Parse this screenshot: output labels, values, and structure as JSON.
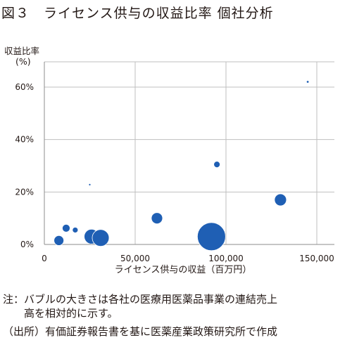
{
  "title": "図３　ライセンス供与の収益比率 個社分析",
  "chart_data": {
    "type": "scatter",
    "bubble": true,
    "ylabel": "収益比率",
    "yunit": "(%)",
    "xlabel": "ライセンス供与の収益（百万円）",
    "xlim": [
      0,
      150000
    ],
    "ylim": [
      0,
      0.7
    ],
    "xticks": [
      "0",
      "50,000",
      "100,000",
      "150,000"
    ],
    "xtick_values": [
      0,
      50000,
      100000,
      150000
    ],
    "yticks": [
      "0%",
      "20%",
      "40%",
      "60%"
    ],
    "ytick_values": [
      0,
      0.2,
      0.4,
      0.6
    ],
    "grid": true,
    "bubble_color": "#1f5fb4",
    "points": [
      {
        "x": 145000,
        "y": 0.62,
        "r": 1.8
      },
      {
        "x": 95000,
        "y": 0.305,
        "r": 4.5
      },
      {
        "x": 25000,
        "y": 0.228,
        "r": 1.5
      },
      {
        "x": 130000,
        "y": 0.17,
        "r": 8.5
      },
      {
        "x": 62000,
        "y": 0.1,
        "r": 8
      },
      {
        "x": 12000,
        "y": 0.062,
        "r": 5.5
      },
      {
        "x": 17000,
        "y": 0.055,
        "r": 4
      },
      {
        "x": 26000,
        "y": 0.03,
        "r": 10.5
      },
      {
        "x": 31000,
        "y": 0.025,
        "r": 12
      },
      {
        "x": 92000,
        "y": 0.03,
        "r": 20
      },
      {
        "x": 8000,
        "y": 0.015,
        "r": 7
      }
    ]
  },
  "notes": {
    "line1": "注：バブルの大きさは各社の医療用医薬品事業の連結売上",
    "line2": "　　高を相対的に示す。",
    "line3": "（出所）有価証券報告書を基に医薬産業政策研究所で作成"
  }
}
